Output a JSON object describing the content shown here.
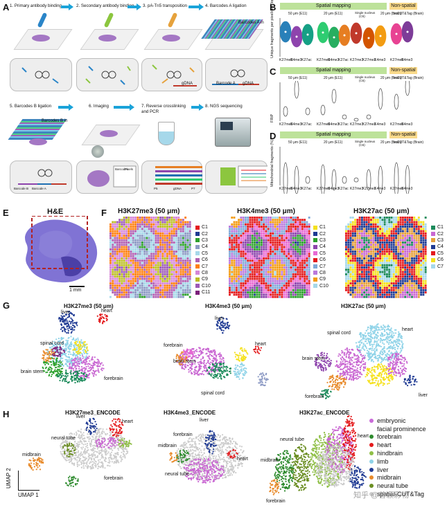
{
  "panels": {
    "A": "A",
    "B": "B",
    "C": "C",
    "D": "D",
    "E": "E",
    "F": "F",
    "G": "G",
    "H": "H"
  },
  "workflow_steps": [
    "1. Primary antibody binding",
    "2. Secondary antibody binding",
    "3. pA-Tn5 transposition",
    "4. Barcodes A ligation",
    "5. Barcodes B ligation",
    "6. Imaging",
    "7. Reverse crosslinking",
    "8. NGS sequencing"
  ],
  "workflow_step7_line2": "and PCR",
  "workflow_inner": {
    "barcodeA": "Barcode A",
    "barcodeB": "Barcode B",
    "gDNA": "gDNA",
    "barcodeA_in": "Barcodes A in",
    "barcodeB_in": "Barcodes B in",
    "table_barcodes": "Barcodes",
    "table_pixels": "Pixels",
    "table_rows": [
      "(A1, B1)",
      "(1, 1)"
    ],
    "pcr_row": [
      "P5",
      "BC (B)",
      "BC (A)",
      "gDNA",
      "Index",
      "P7"
    ]
  },
  "qc": {
    "header_spatial": "Spatial mapping",
    "header_nonspatial": "Non-spatial",
    "groups": [
      "50 μm (E11)",
      "20 μm (E11)",
      "Single nucleus (C6)",
      "20 μm (Brain)",
      "scCUT&Tag (Brain)"
    ],
    "group_single_line1": "Single nucleus",
    "group_single_line2": "(C6)",
    "xlabels_B": [
      "K27me3",
      "K4me3",
      "K27ac",
      "K27me3",
      "K4me3",
      "K27ac",
      "K27me3",
      "K27me3",
      "K4me3",
      "K27me3",
      "K4me3"
    ],
    "ylabel_B": "Unique fragments per pixel/cell (log10)",
    "ylabel_C": "FRiP",
    "ylabel_D": "Mitochondrial fragments (%)",
    "colors": [
      "#2980b9",
      "#8e44ad",
      "#16a085",
      "#2ecc71",
      "#27ae60",
      "#e67e22",
      "#c0392b",
      "#d35400",
      "#f39c12",
      "#e84393",
      "#7d3c98"
    ]
  },
  "he": {
    "title": "H&E",
    "scale": "1 mm"
  },
  "spatial_maps": [
    {
      "title": "H3K27me3 (50 μm)",
      "clusters": [
        "C1",
        "C2",
        "C3",
        "C4",
        "C5",
        "C6",
        "C7",
        "C8",
        "C9",
        "C10",
        "C11"
      ],
      "colors": [
        "#e41a1c",
        "#1f3a93",
        "#2ca02c",
        "#8c9ac4",
        "#a6d8ea",
        "#b05fb2",
        "#ff7f0e",
        "#d685d8",
        "#bcbd22",
        "#9b59b6",
        "#7b1e7a"
      ]
    },
    {
      "title": "H3K4me3 (50 μm)",
      "clusters": [
        "C1",
        "C2",
        "C3",
        "C4",
        "C5",
        "C6",
        "C7",
        "C8",
        "C9",
        "C10"
      ],
      "colors": [
        "#f5e11d",
        "#1f3a93",
        "#2ca02c",
        "#8e44ad",
        "#e86ad3",
        "#e41a1c",
        "#7fa8d8",
        "#ba78dc",
        "#f39c12",
        "#a6d8ea"
      ]
    },
    {
      "title": "H3K27ac (50 μm)",
      "clusters": [
        "C1",
        "C2",
        "C3",
        "C4",
        "C5",
        "C6",
        "C7"
      ],
      "colors": [
        "#1b8a5a",
        "#c967d2",
        "#e6a13b",
        "#1f3a93",
        "#e41a1c",
        "#f5e11d",
        "#a6d8ea"
      ]
    }
  ],
  "umap_G": [
    {
      "title": "H3K27me3 (50 μm)",
      "labels": [
        "liver",
        "heart",
        "spinal cord",
        "brain stem",
        "forebrain"
      ]
    },
    {
      "title": "H3K4me3 (50 μm)",
      "labels": [
        "liver",
        "forebrain",
        "brain stem",
        "heart",
        "spinal cord"
      ]
    },
    {
      "title": "H3K27ac (50 μm)",
      "labels": [
        "spinal cord",
        "heart",
        "brain stem",
        "forebrain",
        "liver"
      ]
    }
  ],
  "umap_H": [
    {
      "title": "H3K27me3_ENCODE",
      "labels": [
        "liver",
        "heart",
        "neural tube",
        "midbrain",
        "forebrain"
      ]
    },
    {
      "title": "H3K4me3_ENCODE",
      "labels": [
        "liver",
        "forebrain",
        "midbrain",
        "heart",
        "neural tube"
      ]
    },
    {
      "title": "H3K27ac_ENCODE",
      "labels": [
        "neural tube",
        "heart",
        "midbrain",
        "forebrain"
      ]
    }
  ],
  "h_axes": {
    "y": "UMAP 2",
    "x": "UMAP 1"
  },
  "h_legend": [
    {
      "label": "embryonic",
      "color": "#c96ad8"
    },
    {
      "label": "facial prominence",
      "color": "#c96ad8"
    },
    {
      "label": "forebrain",
      "color": "#2e8b2e"
    },
    {
      "label": "heart",
      "color": "#e41a1c"
    },
    {
      "label": "hindbrain",
      "color": "#8fbf47"
    },
    {
      "label": "limb",
      "color": "#8fd3e8"
    },
    {
      "label": "liver",
      "color": "#1f3a93"
    },
    {
      "label": "midbrain",
      "color": "#e88a2a"
    },
    {
      "label": "neural tube",
      "color": "#6b8e23"
    },
    {
      "label": "spatial-CUT&Tag",
      "color": "#cccccc"
    }
  ],
  "watermark": "知乎 @曾颖彩物"
}
